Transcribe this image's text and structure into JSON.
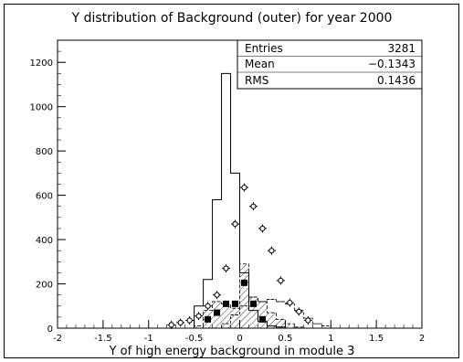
{
  "chart_data": {
    "type": "histogram",
    "title": "Y distribution of Background (outer) for year 2000",
    "xlabel": "Y of high energy background in module 3",
    "ylabel": "",
    "xlim": [
      -2,
      2
    ],
    "ylim": [
      0,
      1300
    ],
    "x_ticks": [
      "-2",
      "-1.5",
      "-1",
      "-0.5",
      "0",
      "0.5",
      "1",
      "1.5",
      "2"
    ],
    "x_tick_values": [
      -2,
      -1.5,
      -1,
      -0.5,
      0,
      0.5,
      1,
      1.5,
      2
    ],
    "y_ticks": [
      "0",
      "200",
      "400",
      "600",
      "800",
      "1000",
      "1200"
    ],
    "y_tick_values": [
      0,
      200,
      400,
      600,
      800,
      1000,
      1200
    ],
    "grid": false,
    "stats_box": {
      "rows": [
        {
          "label": "Entries",
          "value": "3281"
        },
        {
          "label": "Mean",
          "value": "−0.1343"
        },
        {
          "label": "RMS",
          "value": "0.1436"
        }
      ]
    },
    "bin_width": 0.1,
    "series": [
      {
        "style": "outline-histogram",
        "bins_low": [
          -0.6,
          -0.5,
          -0.4,
          -0.3,
          -0.2,
          -0.1,
          0.0,
          0.1,
          0.2,
          0.3,
          0.4,
          0.5,
          0.6
        ],
        "values": [
          0,
          100,
          220,
          580,
          1150,
          700,
          250,
          80,
          30,
          10,
          5,
          0,
          0
        ]
      },
      {
        "style": "hatched-histogram",
        "bins_low": [
          -0.5,
          -0.4,
          -0.3,
          -0.2,
          -0.1,
          0.0,
          0.1,
          0.2,
          0.3,
          0.4,
          0.5,
          0.6
        ],
        "values": [
          10,
          80,
          120,
          110,
          90,
          290,
          140,
          120,
          70,
          40,
          20,
          5
        ]
      },
      {
        "style": "dashed-histogram",
        "bins_low": [
          -0.2,
          -0.1,
          0.0,
          0.1,
          0.2,
          0.3,
          0.4,
          0.5,
          0.6,
          0.7,
          0.8,
          0.9
        ],
        "values": [
          20,
          60,
          100,
          140,
          120,
          130,
          120,
          110,
          80,
          45,
          20,
          10
        ]
      },
      {
        "style": "open-cross-markers",
        "x": [
          -0.75,
          -0.65,
          -0.55,
          -0.45,
          -0.35,
          -0.25,
          -0.15,
          -0.05,
          0.05,
          0.15,
          0.25,
          0.35,
          0.45,
          0.55,
          0.65,
          0.75
        ],
        "y": [
          15,
          25,
          35,
          55,
          100,
          150,
          270,
          470,
          635,
          550,
          450,
          350,
          215,
          115,
          75,
          35
        ]
      },
      {
        "style": "filled-square-markers",
        "x": [
          -0.35,
          -0.25,
          -0.15,
          -0.05,
          0.05,
          0.15,
          0.25
        ],
        "y": [
          40,
          70,
          110,
          110,
          205,
          110,
          40
        ]
      }
    ]
  }
}
